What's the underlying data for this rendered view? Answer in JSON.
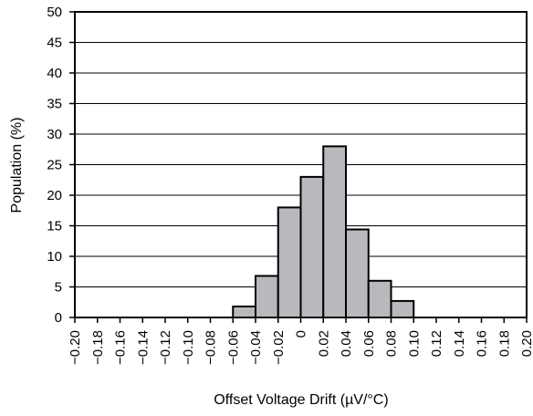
{
  "chart_data": {
    "type": "bar",
    "xlabel": "Offset Voltage Drift (µV/°C)",
    "ylabel": "Population (%)",
    "xlim": [
      -0.2,
      0.2
    ],
    "ylim": [
      0,
      50
    ],
    "grid": {
      "horizontal": true,
      "vertical": false
    },
    "bin_width": 0.02,
    "bins": [
      {
        "x0": -0.06,
        "x1": -0.04,
        "value": 1.8
      },
      {
        "x0": -0.04,
        "x1": -0.02,
        "value": 6.8
      },
      {
        "x0": -0.02,
        "x1": 0.0,
        "value": 18
      },
      {
        "x0": 0.0,
        "x1": 0.02,
        "value": 23
      },
      {
        "x0": 0.02,
        "x1": 0.04,
        "value": 28
      },
      {
        "x0": 0.04,
        "x1": 0.06,
        "value": 14.4
      },
      {
        "x0": 0.06,
        "x1": 0.08,
        "value": 6
      },
      {
        "x0": 0.08,
        "x1": 0.1,
        "value": 2.7
      }
    ],
    "x_ticks": [
      -0.2,
      -0.18,
      -0.16,
      -0.14,
      -0.12,
      -0.1,
      -0.08,
      -0.06,
      -0.04,
      -0.02,
      0,
      0.02,
      0.04,
      0.06,
      0.08,
      0.1,
      0.12,
      0.14,
      0.16,
      0.18,
      0.2
    ],
    "x_tick_labels": [
      "−0.20",
      "−0.18",
      "−0.16",
      "−0.14",
      "−0.12",
      "−0.10",
      "−0.08",
      "−0.06",
      "−0.04",
      "−0.02",
      "0",
      "0.02",
      "0.04",
      "0.06",
      "0.08",
      "0.10",
      "0.12",
      "0.14",
      "0.16",
      "0.18",
      "0.20"
    ],
    "y_ticks": [
      0,
      5,
      10,
      15,
      20,
      25,
      30,
      35,
      40,
      45,
      50
    ],
    "y_tick_labels": [
      "0",
      "5",
      "10",
      "15",
      "20",
      "25",
      "30",
      "35",
      "40",
      "45",
      "50"
    ],
    "colors": {
      "bar_fill": "#b8b9bd",
      "bar_stroke": "#000000",
      "grid": "#000000"
    }
  }
}
